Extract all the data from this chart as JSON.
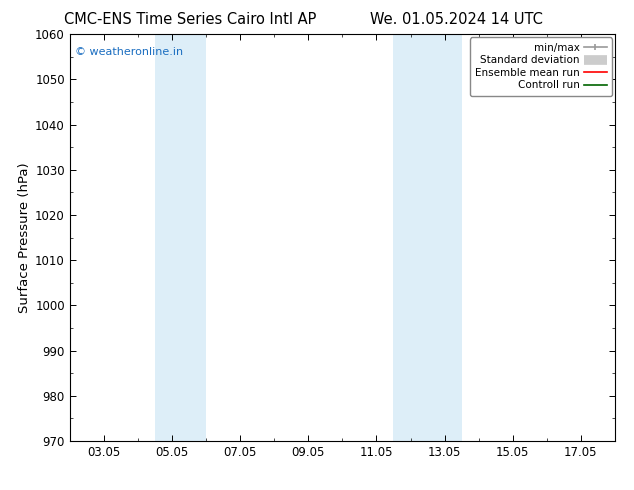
{
  "title_left": "CMC-ENS Time Series Cairo Intl AP",
  "title_right": "We. 01.05.2024 14 UTC",
  "ylabel": "Surface Pressure (hPa)",
  "ylim": [
    970,
    1060
  ],
  "yticks": [
    970,
    980,
    990,
    1000,
    1010,
    1020,
    1030,
    1040,
    1050,
    1060
  ],
  "xlabel_ticks": [
    "03.05",
    "05.05",
    "07.05",
    "09.05",
    "11.05",
    "13.05",
    "15.05",
    "17.05"
  ],
  "x_tick_positions": [
    2,
    4,
    6,
    8,
    10,
    12,
    14,
    16
  ],
  "xlim": [
    1,
    17
  ],
  "shaded_bands": [
    {
      "x_start": 3.5,
      "x_end": 5.0,
      "color": "#ddeef8"
    },
    {
      "x_start": 10.5,
      "x_end": 12.5,
      "color": "#ddeef8"
    }
  ],
  "watermark_text": "© weatheronline.in",
  "watermark_color": "#1a6dc0",
  "legend_items": [
    {
      "label": "min/max",
      "color": "#aaaaaa",
      "linewidth": 1.5
    },
    {
      "label": "Standard deviation",
      "color": "#cccccc",
      "linewidth": 7
    },
    {
      "label": "Ensemble mean run",
      "color": "#ff0000",
      "linewidth": 1.2
    },
    {
      "label": "Controll run",
      "color": "#006400",
      "linewidth": 1.2
    }
  ],
  "bg_color": "#ffffff",
  "spine_color": "#000000",
  "title_fontsize": 10.5,
  "tick_fontsize": 8.5,
  "ylabel_fontsize": 9.5,
  "watermark_fontsize": 8
}
